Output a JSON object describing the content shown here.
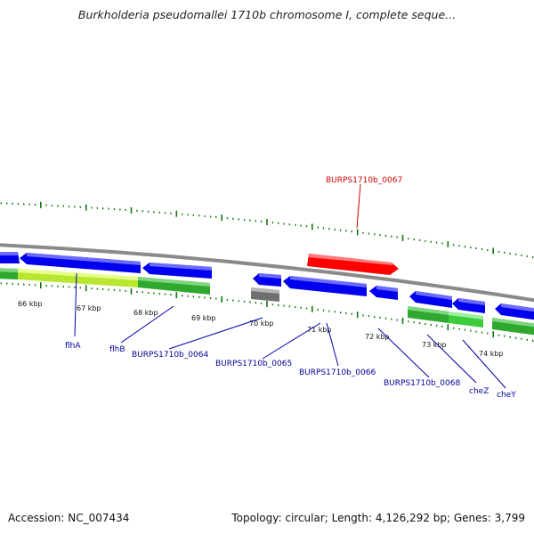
{
  "title": "Burkholderia pseudomallei 1710b chromosome I, complete seque...",
  "footer": {
    "accession": "Accession: NC_007434",
    "summary": "Topology: circular; Length: 4,126,292 bp; Genes: 3,799"
  },
  "colors": {
    "gene_forward": "#ff0000",
    "gene_reverse": "#0000ff",
    "gene_green": "#2ea82e",
    "gene_lightgreen": "#c8f032",
    "gene_gray": "#777777",
    "backbone": "#8a8a8a",
    "ticks": "#117711",
    "label_reverse": "#000099",
    "label_forward": "#cc0000"
  },
  "kbp_ticks": [
    "66 kbp",
    "67 kbp",
    "68 kbp",
    "69 kbp",
    "70 kbp",
    "71 kbp",
    "72 kbp",
    "73 kbp",
    "74 kbp"
  ],
  "gene_labels": [
    {
      "name": "BURPS1710b_0067",
      "strand": "forward"
    },
    {
      "name": "flhA",
      "strand": "reverse"
    },
    {
      "name": "flhB",
      "strand": "reverse"
    },
    {
      "name": "BURPS1710b_0064",
      "strand": "reverse"
    },
    {
      "name": "BURPS1710b_0065",
      "strand": "reverse"
    },
    {
      "name": "BURPS1710b_0066",
      "strand": "reverse"
    },
    {
      "name": "BURPS1710b_0068",
      "strand": "reverse"
    },
    {
      "name": "cheZ",
      "strand": "reverse"
    },
    {
      "name": "cheY",
      "strand": "reverse"
    }
  ]
}
